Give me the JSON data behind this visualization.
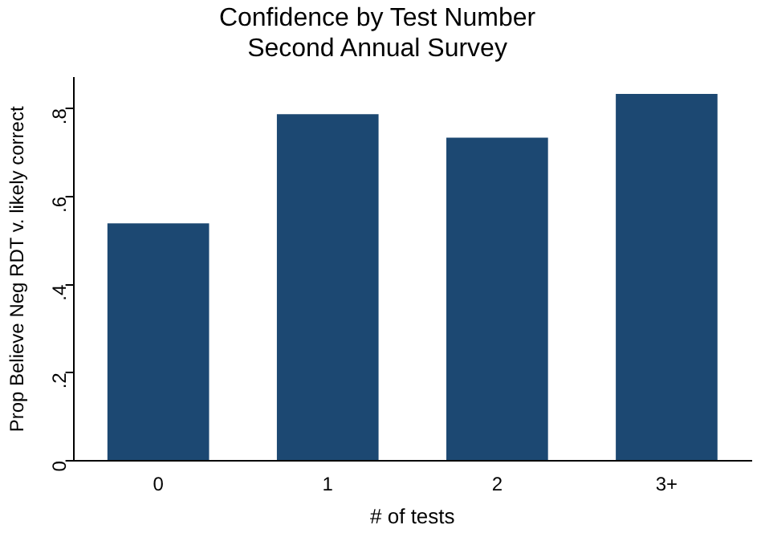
{
  "chart_data": {
    "type": "bar",
    "title": "Confidence by Test Number",
    "subtitle": "Second Annual Survey",
    "xlabel": "# of tests",
    "ylabel": "Prop Believe Neg RDT v. likely correct",
    "categories": [
      "0",
      "1",
      "2",
      "3+"
    ],
    "values": [
      0.539,
      0.787,
      0.734,
      0.833
    ],
    "color": "#1c4872",
    "ylim": [
      0,
      0.87
    ],
    "yticks": [
      {
        "value": 0,
        "label": "0"
      },
      {
        "value": 0.2,
        "label": ".2"
      },
      {
        "value": 0.4,
        "label": ".4"
      },
      {
        "value": 0.6,
        "label": ".6"
      },
      {
        "value": 0.8,
        "label": ".8"
      }
    ],
    "grid": false,
    "legend": false
  }
}
